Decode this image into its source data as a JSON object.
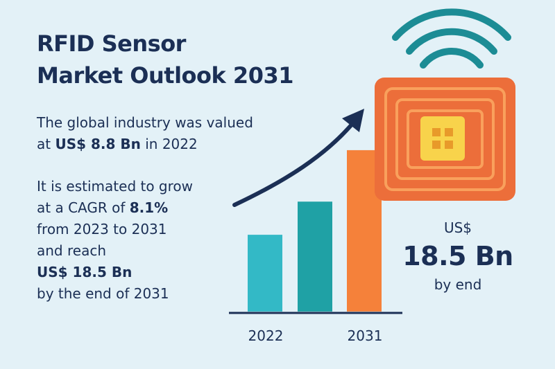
{
  "title": {
    "line1": "RFID Sensor",
    "line2": "Market Outlook 2031"
  },
  "para1": {
    "line1": "The global industry was valued",
    "line2_prefix": "at ",
    "line2_bold": "US$ 8.8 Bn",
    "line2_suffix": " in 2022"
  },
  "para2": {
    "line1": "It is estimated to grow",
    "line2_prefix": "at a CAGR of ",
    "line2_bold": "8.1%",
    "line3": "from 2023 to 2031",
    "line4": "and reach",
    "line5_bold": "US$ 18.5 Bn",
    "line6": "by the end of 2031"
  },
  "callout": {
    "currency": "US$",
    "value": "18.5 Bn",
    "caption": "by end"
  },
  "icons": [
    "rfid-tag-icon",
    "wifi-signal-icon",
    "growth-arrow-icon"
  ],
  "colors": {
    "title": "#1b2f55",
    "bar_teal": "#33b9c6",
    "bar_teal_dark": "#1fa1a5",
    "bar_orange": "#f5813a",
    "tag_orange": "#ec6e3a",
    "chip_yellow": "#f8d34b",
    "signal": "#1c8c95",
    "background": "#e3f1f7"
  },
  "chart_data": {
    "type": "bar",
    "categories": [
      "2022",
      "",
      "2031"
    ],
    "values": [
      8.8,
      12.6,
      18.5
    ],
    "tick_labels": [
      "2022",
      "2031"
    ],
    "ylim": [
      0,
      20
    ],
    "grid": false,
    "legend": "none"
  }
}
